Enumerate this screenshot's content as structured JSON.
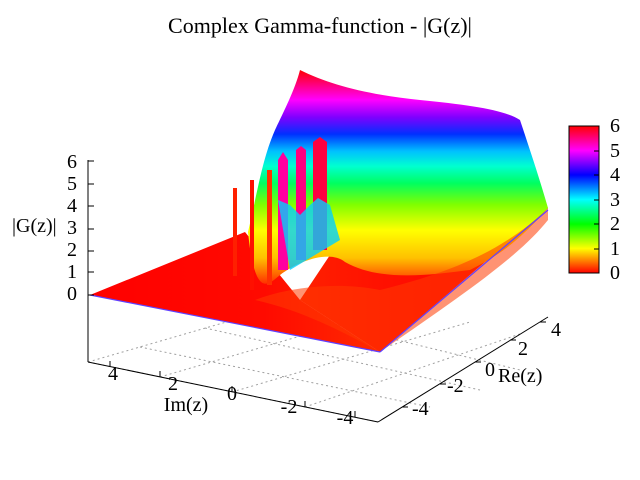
{
  "chart_data": {
    "type": "surface",
    "title": "Complex Gamma-function - |G(z)|",
    "xlabel": "Re(z)",
    "ylabel": "Im(z)",
    "zlabel": "|G(z)|",
    "xlim": [
      -5,
      5
    ],
    "ylim": [
      -5,
      5
    ],
    "zlim": [
      0,
      6
    ],
    "x_ticks": [
      "-4",
      "-2",
      "0",
      "2",
      "4"
    ],
    "y_ticks": [
      "4",
      "2",
      "0",
      "-2",
      "-4"
    ],
    "z_ticks": [
      "0",
      "1",
      "2",
      "3",
      "4",
      "5",
      "6"
    ],
    "colorbar": {
      "range": [
        0,
        6
      ],
      "ticks": [
        "0",
        "1",
        "2",
        "3",
        "4",
        "5",
        "6"
      ],
      "palette": [
        "#ff0000",
        "#ffff00",
        "#00ff00",
        "#00ffff",
        "#0000ff",
        "#ff00ff",
        "#ff0000"
      ]
    },
    "grid": true,
    "legend": "right"
  }
}
